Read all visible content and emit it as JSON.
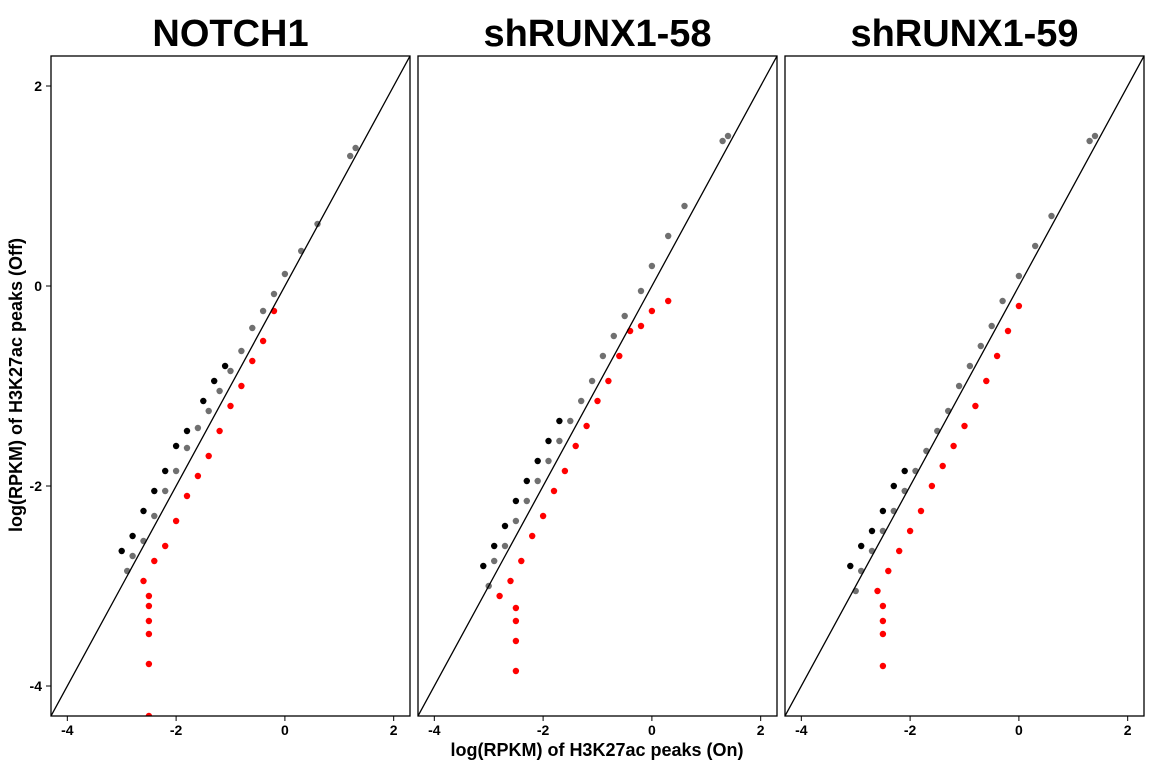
{
  "chart_data": {
    "type": "scatter",
    "ylabel": "log(RPKM) of H3K27ac peaks (Off)",
    "xlabel": "log(RPKM) of H3K27ac peaks (On)",
    "xlim": [
      -4.3,
      2.3
    ],
    "ylim": [
      -4.3,
      2.3
    ],
    "x_ticks": [
      -4,
      -2,
      0,
      2
    ],
    "y_ticks": [
      -4,
      -2,
      0,
      2
    ],
    "reference_line": "y = x",
    "grid": false,
    "legend": "none",
    "colors": {
      "up": "#000000",
      "unchanged": "#707070",
      "down": "#ff0000",
      "line": "#000000"
    },
    "panels": [
      {
        "title": "NOTCH1",
        "series": [
          {
            "class": "unchanged",
            "color": "#707070",
            "points": [
              [
                -2.9,
                -2.85
              ],
              [
                -2.8,
                -2.7
              ],
              [
                -2.6,
                -2.55
              ],
              [
                -2.4,
                -2.3
              ],
              [
                -2.2,
                -2.05
              ],
              [
                -2.0,
                -1.85
              ],
              [
                -1.8,
                -1.62
              ],
              [
                -1.6,
                -1.42
              ],
              [
                -1.4,
                -1.25
              ],
              [
                -1.2,
                -1.05
              ],
              [
                -1.0,
                -0.85
              ],
              [
                -0.8,
                -0.65
              ],
              [
                -0.6,
                -0.42
              ],
              [
                -0.4,
                -0.25
              ],
              [
                -0.2,
                -0.08
              ],
              [
                0.0,
                0.12
              ],
              [
                0.3,
                0.35
              ],
              [
                0.6,
                0.62
              ],
              [
                1.2,
                1.3
              ],
              [
                1.3,
                1.38
              ]
            ]
          },
          {
            "class": "up",
            "color": "#000000",
            "points": [
              [
                -3.0,
                -2.65
              ],
              [
                -2.8,
                -2.5
              ],
              [
                -2.6,
                -2.25
              ],
              [
                -2.4,
                -2.05
              ],
              [
                -2.2,
                -1.85
              ],
              [
                -2.0,
                -1.6
              ],
              [
                -1.8,
                -1.45
              ],
              [
                -1.5,
                -1.15
              ],
              [
                -1.3,
                -0.95
              ],
              [
                -1.1,
                -0.8
              ]
            ]
          },
          {
            "class": "down",
            "color": "#ff0000",
            "points": [
              [
                -2.6,
                -2.95
              ],
              [
                -2.4,
                -2.75
              ],
              [
                -2.2,
                -2.6
              ],
              [
                -2.0,
                -2.35
              ],
              [
                -1.8,
                -2.1
              ],
              [
                -1.6,
                -1.9
              ],
              [
                -1.4,
                -1.7
              ],
              [
                -1.2,
                -1.45
              ],
              [
                -1.0,
                -1.2
              ],
              [
                -0.8,
                -1.0
              ],
              [
                -0.6,
                -0.75
              ],
              [
                -0.4,
                -0.55
              ],
              [
                -0.2,
                -0.25
              ],
              [
                -2.5,
                -3.1
              ],
              [
                -2.5,
                -3.2
              ],
              [
                -2.5,
                -3.35
              ],
              [
                -2.5,
                -3.48
              ],
              [
                -2.5,
                -3.78
              ],
              [
                -2.5,
                -4.3
              ]
            ]
          }
        ]
      },
      {
        "title": "shRUNX1-58",
        "series": [
          {
            "class": "unchanged",
            "color": "#707070",
            "points": [
              [
                -3.0,
                -3.0
              ],
              [
                -2.9,
                -2.75
              ],
              [
                -2.7,
                -2.6
              ],
              [
                -2.5,
                -2.35
              ],
              [
                -2.3,
                -2.15
              ],
              [
                -2.1,
                -1.95
              ],
              [
                -1.9,
                -1.75
              ],
              [
                -1.7,
                -1.55
              ],
              [
                -1.5,
                -1.35
              ],
              [
                -1.3,
                -1.15
              ],
              [
                -1.1,
                -0.95
              ],
              [
                -0.9,
                -0.7
              ],
              [
                -0.7,
                -0.5
              ],
              [
                -0.5,
                -0.3
              ],
              [
                -0.2,
                -0.05
              ],
              [
                0.0,
                0.2
              ],
              [
                0.3,
                0.5
              ],
              [
                0.6,
                0.8
              ],
              [
                1.3,
                1.45
              ],
              [
                1.4,
                1.5
              ]
            ]
          },
          {
            "class": "up",
            "color": "#000000",
            "points": [
              [
                -3.1,
                -2.8
              ],
              [
                -2.9,
                -2.6
              ],
              [
                -2.7,
                -2.4
              ],
              [
                -2.5,
                -2.15
              ],
              [
                -2.3,
                -1.95
              ],
              [
                -2.1,
                -1.75
              ],
              [
                -1.9,
                -1.55
              ],
              [
                -1.7,
                -1.35
              ]
            ]
          },
          {
            "class": "down",
            "color": "#ff0000",
            "points": [
              [
                -2.8,
                -3.1
              ],
              [
                -2.6,
                -2.95
              ],
              [
                -2.4,
                -2.75
              ],
              [
                -2.2,
                -2.5
              ],
              [
                -2.0,
                -2.3
              ],
              [
                -1.8,
                -2.05
              ],
              [
                -1.6,
                -1.85
              ],
              [
                -1.4,
                -1.6
              ],
              [
                -1.2,
                -1.4
              ],
              [
                -1.0,
                -1.15
              ],
              [
                -0.8,
                -0.95
              ],
              [
                -0.6,
                -0.7
              ],
              [
                -0.4,
                -0.45
              ],
              [
                -0.2,
                -0.4
              ],
              [
                0.0,
                -0.25
              ],
              [
                0.3,
                -0.15
              ],
              [
                -2.5,
                -3.22
              ],
              [
                -2.5,
                -3.35
              ],
              [
                -2.5,
                -3.55
              ],
              [
                -2.5,
                -3.85
              ]
            ]
          }
        ]
      },
      {
        "title": "shRUNX1-59",
        "series": [
          {
            "class": "unchanged",
            "color": "#707070",
            "points": [
              [
                -3.0,
                -3.05
              ],
              [
                -2.9,
                -2.85
              ],
              [
                -2.7,
                -2.65
              ],
              [
                -2.5,
                -2.45
              ],
              [
                -2.3,
                -2.25
              ],
              [
                -2.1,
                -2.05
              ],
              [
                -1.9,
                -1.85
              ],
              [
                -1.7,
                -1.65
              ],
              [
                -1.5,
                -1.45
              ],
              [
                -1.3,
                -1.25
              ],
              [
                -1.1,
                -1.0
              ],
              [
                -0.9,
                -0.8
              ],
              [
                -0.7,
                -0.6
              ],
              [
                -0.5,
                -0.4
              ],
              [
                -0.3,
                -0.15
              ],
              [
                0.0,
                0.1
              ],
              [
                0.3,
                0.4
              ],
              [
                0.6,
                0.7
              ],
              [
                1.3,
                1.45
              ],
              [
                1.4,
                1.5
              ]
            ]
          },
          {
            "class": "up",
            "color": "#000000",
            "points": [
              [
                -3.1,
                -2.8
              ],
              [
                -2.9,
                -2.6
              ],
              [
                -2.7,
                -2.45
              ],
              [
                -2.5,
                -2.25
              ],
              [
                -2.3,
                -2.0
              ],
              [
                -2.1,
                -1.85
              ]
            ]
          },
          {
            "class": "down",
            "color": "#ff0000",
            "points": [
              [
                -2.6,
                -3.05
              ],
              [
                -2.4,
                -2.85
              ],
              [
                -2.2,
                -2.65
              ],
              [
                -2.0,
                -2.45
              ],
              [
                -1.8,
                -2.25
              ],
              [
                -1.6,
                -2.0
              ],
              [
                -1.4,
                -1.8
              ],
              [
                -1.2,
                -1.6
              ],
              [
                -1.0,
                -1.4
              ],
              [
                -0.8,
                -1.2
              ],
              [
                -0.6,
                -0.95
              ],
              [
                -0.4,
                -0.7
              ],
              [
                -0.2,
                -0.45
              ],
              [
                0.0,
                -0.2
              ],
              [
                -2.5,
                -3.2
              ],
              [
                -2.5,
                -3.35
              ],
              [
                -2.5,
                -3.48
              ],
              [
                -2.5,
                -3.8
              ]
            ]
          }
        ]
      }
    ]
  }
}
